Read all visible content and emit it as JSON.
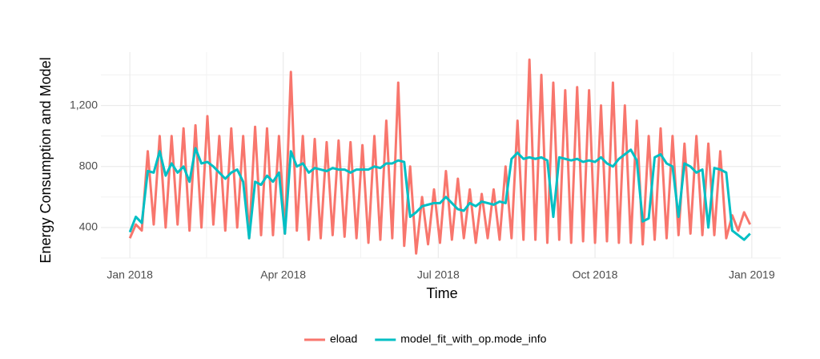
{
  "chart_data": {
    "type": "line",
    "xlabel": "Time",
    "ylabel": "Energy Consumption and Model",
    "x": [
      0,
      3.5,
      7,
      10.5,
      14,
      17.5,
      21,
      24.5,
      28,
      31.5,
      35,
      38.5,
      42,
      45.5,
      49,
      52.5,
      56,
      59.5,
      63,
      66.5,
      70,
      73.5,
      77,
      80.5,
      84,
      87.5,
      91,
      94.5,
      98,
      101.5,
      105,
      108.5,
      112,
      115.5,
      119,
      122.5,
      126,
      129.5,
      133,
      136.5,
      140,
      143.5,
      147,
      150.5,
      154,
      157.5,
      161,
      164.5,
      168,
      171.5,
      175,
      178.5,
      182,
      185.5,
      189,
      192.5,
      196,
      199.5,
      203,
      206.5,
      210,
      213.5,
      217,
      220.5,
      224,
      227.5,
      231,
      234.5,
      238,
      241.5,
      245,
      248.5,
      252,
      255.5,
      259,
      262.5,
      266,
      269.5,
      273,
      276.5,
      280,
      283.5,
      287,
      290.5,
      294,
      297.5,
      301,
      304.5,
      308,
      311.5,
      315,
      318.5,
      322,
      325.5,
      329,
      332.5,
      336,
      339.5,
      343,
      346.5,
      350,
      353.5,
      357,
      360.5,
      364
    ],
    "series": [
      {
        "name": "eload",
        "color": "#F8766D",
        "values": [
          330,
          420,
          380,
          900,
          420,
          1000,
          400,
          1000,
          420,
          1050,
          380,
          1070,
          400,
          1130,
          420,
          1000,
          380,
          1050,
          400,
          1000,
          330,
          1060,
          350,
          1050,
          350,
          1000,
          360,
          1420,
          380,
          1000,
          320,
          980,
          330,
          960,
          350,
          970,
          340,
          960,
          330,
          940,
          300,
          1000,
          320,
          1100,
          330,
          1350,
          280,
          800,
          230,
          600,
          290,
          650,
          300,
          770,
          320,
          720,
          330,
          650,
          300,
          620,
          330,
          650,
          320,
          800,
          330,
          1100,
          320,
          1500,
          320,
          1400,
          300,
          1350,
          320,
          1300,
          300,
          1320,
          310,
          1300,
          300,
          1200,
          310,
          1350,
          300,
          1200,
          300,
          1100,
          290,
          1000,
          320,
          1050,
          330,
          1000,
          350,
          950,
          360,
          1000,
          350,
          950,
          350,
          900,
          330,
          480,
          380,
          500,
          420
        ]
      },
      {
        "name": "model_fit_with_op.mode_info",
        "color": "#00BFC4",
        "values": [
          370,
          470,
          430,
          770,
          760,
          900,
          740,
          820,
          760,
          800,
          700,
          920,
          820,
          830,
          800,
          760,
          720,
          760,
          780,
          700,
          330,
          700,
          680,
          740,
          700,
          760,
          360,
          900,
          800,
          820,
          760,
          790,
          780,
          770,
          790,
          780,
          780,
          760,
          780,
          780,
          780,
          800,
          790,
          820,
          820,
          840,
          830,
          470,
          500,
          540,
          550,
          560,
          560,
          600,
          560,
          520,
          510,
          560,
          540,
          570,
          560,
          550,
          570,
          560,
          850,
          890,
          850,
          860,
          850,
          860,
          840,
          470,
          860,
          850,
          840,
          850,
          830,
          840,
          830,
          860,
          820,
          800,
          850,
          880,
          910,
          840,
          440,
          460,
          860,
          880,
          820,
          800,
          470,
          820,
          800,
          760,
          780,
          400,
          790,
          780,
          760,
          380,
          350,
          320,
          360
        ]
      }
    ],
    "xlim": [
      -17,
      382
    ],
    "xticks": [
      {
        "value": 0,
        "label": "Jan 2018"
      },
      {
        "value": 90,
        "label": "Apr 2018"
      },
      {
        "value": 181,
        "label": "Jul 2018"
      },
      {
        "value": 273,
        "label": "Oct 2018"
      },
      {
        "value": 365,
        "label": "Jan 2019"
      }
    ],
    "ylim": [
      200,
      1550
    ],
    "yticks": [
      400,
      800,
      {
        "value": 1200,
        "label": "1,200"
      }
    ],
    "grid": true,
    "legend": "bottom"
  }
}
